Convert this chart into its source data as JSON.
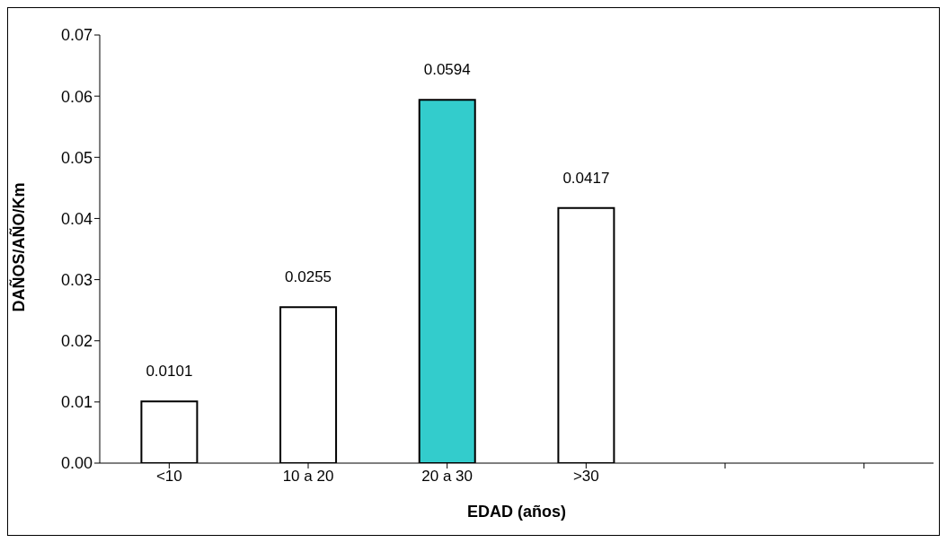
{
  "chart_data": {
    "type": "bar",
    "xlabel": "EDAD (años)",
    "ylabel": "DAÑOS/AÑO/Km",
    "categories": [
      "<10",
      "10 a 20",
      "20 a 30",
      ">30",
      null,
      null
    ],
    "values": [
      0.0101,
      0.0255,
      0.0594,
      0.0417,
      null,
      null
    ],
    "colors": [
      "#ffffff",
      "#ffffff",
      "#33cccc",
      "#ffffff",
      "#ffffff",
      "#ffffff"
    ],
    "ylim": [
      0,
      0.07
    ],
    "yticks": [
      {
        "value": 0,
        "label": "0.00"
      },
      0.01,
      0.02,
      0.03,
      0.04,
      0.05,
      0.06,
      0.07
    ],
    "data_labels": true,
    "grid": false,
    "legend": false
  }
}
